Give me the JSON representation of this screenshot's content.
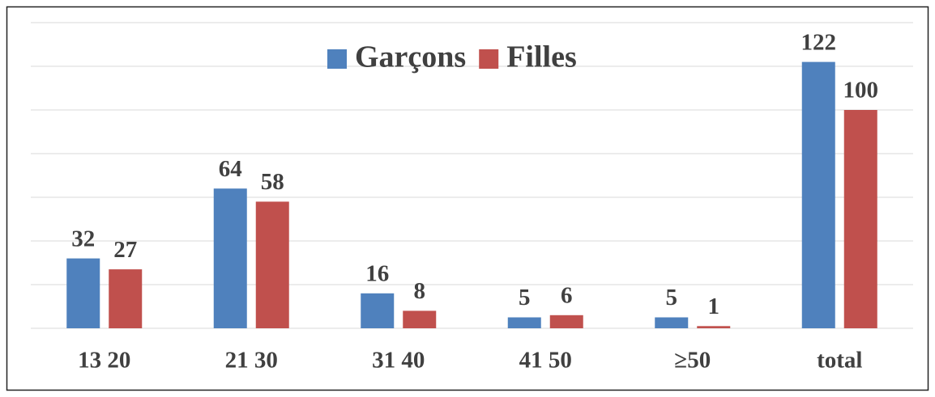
{
  "chart_data": {
    "type": "bar",
    "categories": [
      "13 20",
      "21 30",
      "31 40",
      "41 50",
      "≥50",
      "total"
    ],
    "series": [
      {
        "name": "Garçons",
        "color": "#4f81bd",
        "values": [
          32,
          64,
          16,
          5,
          5,
          122
        ]
      },
      {
        "name": "Filles",
        "color": "#c0504d",
        "values": [
          27,
          58,
          8,
          6,
          1,
          100
        ]
      }
    ],
    "ylim": [
      0,
      140
    ],
    "yticks": [
      0,
      20,
      40,
      60,
      80,
      100,
      120,
      140
    ],
    "grid": true,
    "legend": "top"
  }
}
